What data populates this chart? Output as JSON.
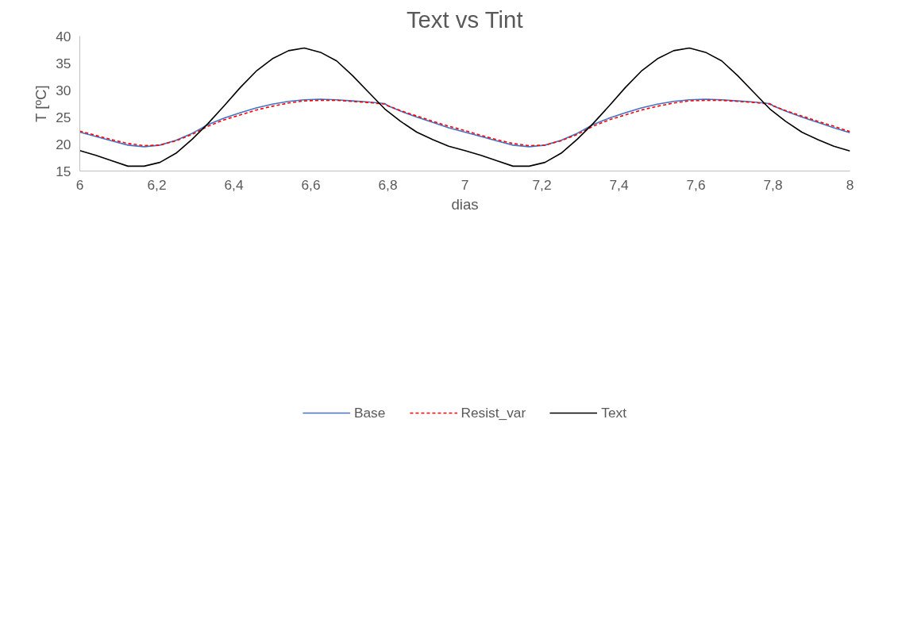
{
  "chart_data": {
    "type": "line",
    "title": "Text vs Tint",
    "xlabel": "dias",
    "ylabel": "T [ºC]",
    "xlim": [
      6,
      8
    ],
    "ylim": [
      15,
      40
    ],
    "xticks": [
      6,
      {
        "value": 6.2,
        "label": "6,2"
      },
      {
        "value": 6.4,
        "label": "6,4"
      },
      {
        "value": 6.6,
        "label": "6,6"
      },
      {
        "value": 6.8,
        "label": "6,8"
      },
      7,
      {
        "value": 7.2,
        "label": "7,2"
      },
      {
        "value": 7.4,
        "label": "7,4"
      },
      {
        "value": 7.6,
        "label": "7,6"
      },
      {
        "value": 7.8,
        "label": "7,8"
      },
      8
    ],
    "yticks": [
      15,
      20,
      25,
      30,
      35,
      40
    ],
    "grid": false,
    "legend": "bottom",
    "marker": "none",
    "series": [
      {
        "name": "Base",
        "color": "#4472c4",
        "line_style": "solid",
        "x": [
          6,
          6.042,
          6.083,
          6.125,
          6.167,
          6.208,
          6.25,
          6.292,
          6.333,
          6.375,
          6.417,
          6.458,
          6.5,
          6.542,
          6.583,
          6.625,
          6.667,
          6.708,
          6.75,
          6.792,
          6.8,
          6.833,
          6.875,
          6.917,
          6.958,
          7,
          7.042,
          7.083,
          7.125,
          7.167,
          7.208,
          7.25,
          7.292,
          7.333,
          7.375,
          7.417,
          7.458,
          7.5,
          7.542,
          7.583,
          7.625,
          7.667,
          7.708,
          7.75,
          7.792,
          7.8,
          7.833,
          7.875,
          7.917,
          7.958,
          8
        ],
        "values": [
          22.2,
          21.4,
          20.6,
          19.8,
          19.5,
          19.8,
          20.7,
          22.0,
          23.6,
          24.8,
          25.8,
          26.7,
          27.4,
          27.9,
          28.2,
          28.3,
          28.2,
          28.0,
          27.8,
          27.5,
          27.1,
          26.1,
          25.0,
          24.0,
          23.0,
          22.2,
          21.4,
          20.6,
          19.8,
          19.5,
          19.8,
          20.7,
          22.0,
          23.6,
          24.8,
          25.8,
          26.7,
          27.4,
          27.9,
          28.2,
          28.3,
          28.2,
          28.0,
          27.8,
          27.5,
          27.1,
          26.1,
          25.0,
          24.0,
          23.0,
          22.1
        ]
      },
      {
        "name": "Resist_var",
        "color": "#ff0000",
        "line_style": "dashed",
        "x": [
          6,
          6.042,
          6.083,
          6.125,
          6.167,
          6.208,
          6.25,
          6.292,
          6.333,
          6.375,
          6.417,
          6.458,
          6.5,
          6.542,
          6.583,
          6.625,
          6.667,
          6.708,
          6.75,
          6.792,
          6.8,
          6.833,
          6.875,
          6.917,
          6.958,
          7,
          7.042,
          7.083,
          7.125,
          7.167,
          7.208,
          7.25,
          7.292,
          7.333,
          7.375,
          7.417,
          7.458,
          7.5,
          7.542,
          7.583,
          7.625,
          7.667,
          7.708,
          7.75,
          7.792,
          7.8,
          7.833,
          7.875,
          7.917,
          7.958,
          8
        ],
        "values": [
          22.4,
          21.6,
          20.8,
          20.1,
          19.7,
          19.8,
          20.6,
          21.8,
          23.3,
          24.5,
          25.4,
          26.3,
          27.0,
          27.6,
          28.0,
          28.1,
          28.1,
          27.9,
          27.7,
          27.4,
          27.1,
          26.2,
          25.2,
          24.2,
          23.3,
          22.5,
          21.6,
          20.8,
          20.1,
          19.7,
          19.8,
          20.6,
          21.8,
          23.3,
          24.5,
          25.4,
          26.3,
          27.0,
          27.6,
          28.0,
          28.1,
          28.1,
          27.9,
          27.7,
          27.4,
          27.1,
          26.2,
          25.2,
          24.2,
          23.3,
          22.3
        ]
      },
      {
        "name": "Text",
        "color": "#000000",
        "line_style": "solid",
        "x": [
          6,
          6.042,
          6.083,
          6.125,
          6.167,
          6.208,
          6.25,
          6.292,
          6.333,
          6.375,
          6.417,
          6.458,
          6.5,
          6.542,
          6.583,
          6.625,
          6.667,
          6.708,
          6.75,
          6.792,
          6.833,
          6.875,
          6.917,
          6.958,
          7,
          7.042,
          7.083,
          7.125,
          7.167,
          7.208,
          7.25,
          7.292,
          7.333,
          7.375,
          7.417,
          7.458,
          7.5,
          7.542,
          7.583,
          7.625,
          7.667,
          7.708,
          7.75,
          7.792,
          7.833,
          7.875,
          7.917,
          7.958,
          8
        ],
        "values": [
          18.8,
          17.9,
          16.9,
          15.9,
          15.9,
          16.6,
          18.3,
          20.9,
          23.8,
          27.1,
          30.5,
          33.5,
          35.8,
          37.3,
          37.8,
          37.0,
          35.4,
          32.7,
          29.6,
          26.5,
          24.2,
          22.2,
          20.8,
          19.6,
          18.8,
          17.9,
          16.9,
          15.9,
          15.9,
          16.6,
          18.3,
          20.9,
          23.8,
          27.1,
          30.5,
          33.5,
          35.8,
          37.3,
          37.8,
          37.0,
          35.4,
          32.7,
          29.6,
          26.5,
          24.2,
          22.2,
          20.8,
          19.6,
          18.7
        ]
      }
    ]
  }
}
